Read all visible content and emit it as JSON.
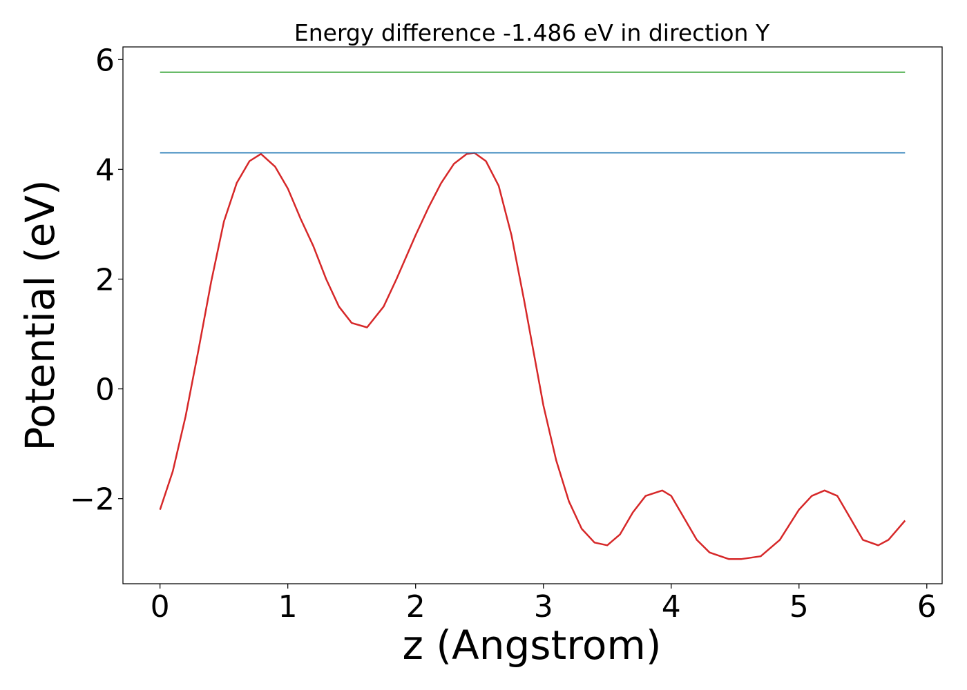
{
  "chart_data": {
    "type": "line",
    "title": "Energy difference -1.486 eV in direction Y",
    "xlabel": "z (Angstrom)",
    "ylabel": "Potential (eV)",
    "xlim": [
      -0.29,
      6.12
    ],
    "ylim": [
      -3.55,
      6.23
    ],
    "xticks": [
      0,
      1,
      2,
      3,
      4,
      5,
      6
    ],
    "xtick_labels": [
      "0",
      "1",
      "2",
      "3",
      "4",
      "5",
      "6"
    ],
    "yticks": [
      -2,
      0,
      2,
      4,
      6
    ],
    "ytick_labels": [
      "−2",
      "0",
      "2",
      "4",
      "6"
    ],
    "grid": false,
    "legend": "none",
    "series": [
      {
        "color": "#d62728",
        "x": [
          0.0,
          0.1,
          0.2,
          0.3,
          0.4,
          0.5,
          0.6,
          0.7,
          0.79,
          0.9,
          1.0,
          1.1,
          1.2,
          1.3,
          1.4,
          1.5,
          1.62,
          1.75,
          1.85,
          2.0,
          2.1,
          2.2,
          2.3,
          2.4,
          2.46,
          2.55,
          2.65,
          2.75,
          2.85,
          3.0,
          3.1,
          3.2,
          3.3,
          3.4,
          3.5,
          3.6,
          3.7,
          3.8,
          3.93,
          4.0,
          4.1,
          4.2,
          4.3,
          4.45,
          4.55,
          4.7,
          4.85,
          5.0,
          5.1,
          5.2,
          5.3,
          5.4,
          5.5,
          5.62,
          5.7,
          5.83
        ],
        "y": [
          -2.2,
          -1.5,
          -0.5,
          0.7,
          1.95,
          3.05,
          3.75,
          4.15,
          4.28,
          4.05,
          3.65,
          3.1,
          2.6,
          2.0,
          1.5,
          1.2,
          1.12,
          1.5,
          2.0,
          2.8,
          3.3,
          3.75,
          4.1,
          4.28,
          4.3,
          4.15,
          3.7,
          2.8,
          1.6,
          -0.3,
          -1.3,
          -2.05,
          -2.55,
          -2.8,
          -2.85,
          -2.65,
          -2.25,
          -1.95,
          -1.85,
          -1.95,
          -2.35,
          -2.75,
          -2.98,
          -3.1,
          -3.1,
          -3.05,
          -2.75,
          -2.2,
          -1.95,
          -1.85,
          -1.95,
          -2.35,
          -2.75,
          -2.85,
          -2.75,
          -2.4
        ]
      },
      {
        "color": "#1f77b4",
        "x": [
          0.0,
          5.83
        ],
        "y": [
          4.3,
          4.3
        ]
      },
      {
        "color": "#2ca02c",
        "x": [
          0.0,
          5.83
        ],
        "y": [
          5.77,
          5.77
        ]
      }
    ]
  }
}
